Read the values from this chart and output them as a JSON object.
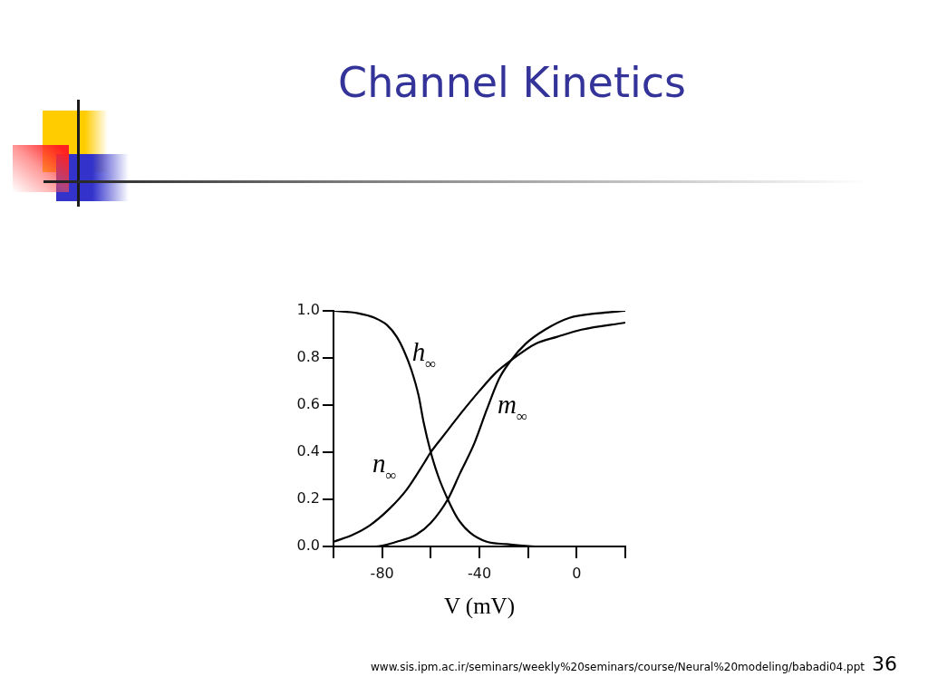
{
  "chart_data": {
    "type": "line",
    "title": "Channel Kinetics",
    "xlabel": "V (mV)",
    "xlim": [
      -100,
      20
    ],
    "xticks": [
      {
        "value": -100,
        "label": null
      },
      -80,
      {
        "value": -60,
        "label": null
      },
      -40,
      {
        "value": -20,
        "label": null
      },
      0,
      {
        "value": 20,
        "label": null
      }
    ],
    "ylim": [
      0,
      1
    ],
    "yticks": [
      {
        "value": 0,
        "label": "0.0"
      },
      0.2,
      0.4,
      0.6,
      0.8,
      {
        "value": 1,
        "label": "1.0"
      }
    ],
    "series": [
      {
        "name": "h$_{∞}$",
        "color": "#000000",
        "x": [
          -100,
          -90,
          -83,
          -78,
          -74,
          -71,
          -68,
          -65,
          -63,
          -60,
          -57,
          -53,
          -49,
          -44,
          -37,
          -29,
          -17,
          20
        ],
        "values": [
          1.0,
          0.99,
          0.97,
          0.94,
          0.89,
          0.83,
          0.75,
          0.64,
          0.53,
          0.4,
          0.3,
          0.2,
          0.12,
          0.06,
          0.02,
          0.01,
          0.0,
          0.0
        ]
      },
      {
        "name": "m$_{∞}$",
        "color": "#000000",
        "x": [
          -100,
          -83,
          -74,
          -66,
          -60,
          -53,
          -48,
          -42,
          -37,
          -32,
          -27,
          -21,
          -13,
          -3,
          9,
          20
        ],
        "values": [
          0.0,
          0.0,
          0.02,
          0.05,
          0.1,
          0.2,
          0.31,
          0.44,
          0.58,
          0.71,
          0.79,
          0.86,
          0.92,
          0.97,
          0.99,
          1.0
        ]
      },
      {
        "name": "n$_{∞}$",
        "color": "#000000",
        "x": [
          -100,
          -92,
          -85,
          -77,
          -70,
          -63,
          -60,
          -54,
          -48,
          -40,
          -33,
          -27,
          -17,
          -8,
          2,
          20
        ],
        "values": [
          0.02,
          0.05,
          0.09,
          0.16,
          0.24,
          0.35,
          0.4,
          0.48,
          0.56,
          0.66,
          0.74,
          0.79,
          0.86,
          0.89,
          0.92,
          0.95
        ]
      }
    ],
    "legend": false,
    "marker": "none",
    "annotations": [
      "www.sis.ipm.ac.ir/seminars/weekly%20seminars/course/Neural%20modeling/babadi04.ppt",
      "36"
    ]
  }
}
